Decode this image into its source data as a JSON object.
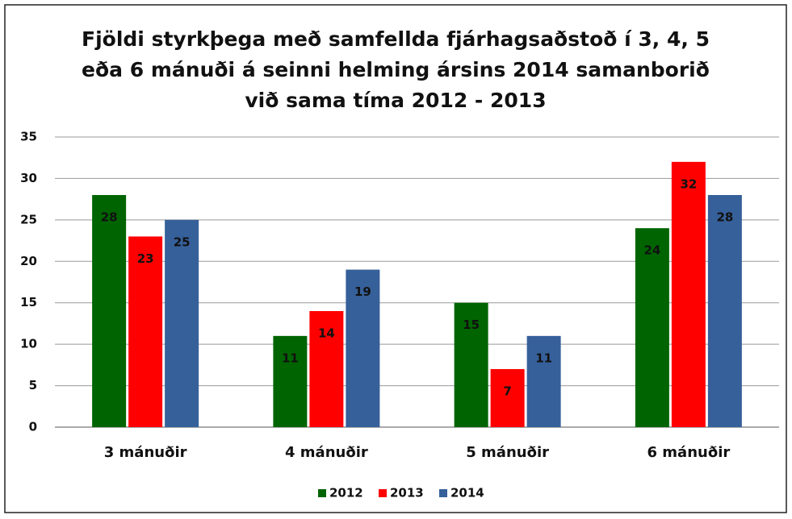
{
  "chart_data": {
    "type": "bar",
    "title": "Fjöldi styrkþega með samfellda fjárhagsaðstoð í 3, 4, 5 eða 6 mánuði á seinni helming ársins 2014 samanborið við sama tíma 2012 - 2013",
    "categories": [
      "3 mánuðir",
      "4 mánuðir",
      "5 mánuðir",
      "6 mánuðir"
    ],
    "series": [
      {
        "name": "2012",
        "color": "#006400",
        "values": [
          28,
          11,
          15,
          24
        ]
      },
      {
        "name": "2013",
        "color": "#ff0000",
        "values": [
          23,
          14,
          7,
          32
        ]
      },
      {
        "name": "2014",
        "color": "#36609a",
        "values": [
          25,
          19,
          11,
          28
        ]
      }
    ],
    "ylim": [
      0,
      35
    ],
    "yticks": [
      0,
      5,
      10,
      15,
      20,
      25,
      30,
      35
    ],
    "grid": true,
    "legend": "bottom"
  }
}
